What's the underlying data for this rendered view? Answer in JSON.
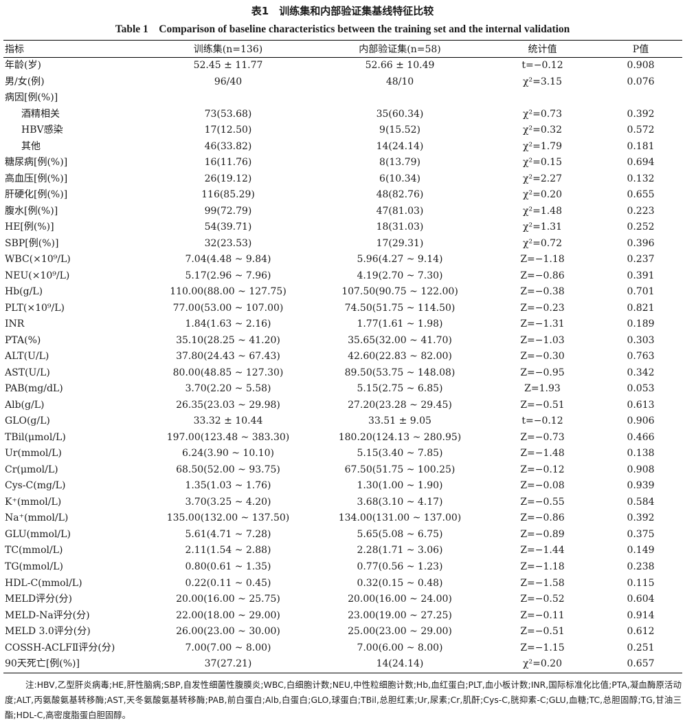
{
  "title_cn": "表1　训练集和内部验证集基线特征比较",
  "title_en": "Table 1　Comparison of baseline characteristics between the training set and the internal validation",
  "headers": [
    "指标",
    "训练集(n=136)",
    "内部验证集(n=58)",
    "统计值",
    "P值"
  ],
  "rows": [
    {
      "name": "年龄(岁)",
      "train": "52.45 ± 11.77",
      "val": "52.66 ± 10.49",
      "stat": "t=−0.12",
      "p": "0.908"
    },
    {
      "name": "男/女(例)",
      "train": "96/40",
      "val": "48/10",
      "stat": "χ²=3.15",
      "p": "0.076"
    },
    {
      "name": "病因[例(%)]",
      "train": "",
      "val": "",
      "stat": "",
      "p": ""
    },
    {
      "name": "酒精相关",
      "indent": true,
      "train": "73(53.68)",
      "val": "35(60.34)",
      "stat": "χ²=0.73",
      "p": "0.392"
    },
    {
      "name": "HBV感染",
      "indent": true,
      "train": "17(12.50)",
      "val": "9(15.52)",
      "stat": "χ²=0.32",
      "p": "0.572"
    },
    {
      "name": "其他",
      "indent": true,
      "train": "46(33.82)",
      "val": "14(24.14)",
      "stat": "χ²=1.79",
      "p": "0.181"
    },
    {
      "name": "糖尿病[例(%)]",
      "train": "16(11.76)",
      "val": "8(13.79)",
      "stat": "χ²=0.15",
      "p": "0.694"
    },
    {
      "name": "高血压[例(%)]",
      "train": "26(19.12)",
      "val": "6(10.34)",
      "stat": "χ²=2.27",
      "p": "0.132"
    },
    {
      "name": "肝硬化[例(%)]",
      "train": "116(85.29)",
      "val": "48(82.76)",
      "stat": "χ²=0.20",
      "p": "0.655"
    },
    {
      "name": "腹水[例(%)]",
      "train": "99(72.79)",
      "val": "47(81.03)",
      "stat": "χ²=1.48",
      "p": "0.223"
    },
    {
      "name": "HE[例(%)]",
      "train": "54(39.71)",
      "val": "18(31.03)",
      "stat": "χ²=1.31",
      "p": "0.252"
    },
    {
      "name": "SBP[例(%)]",
      "train": "32(23.53)",
      "val": "17(29.31)",
      "stat": "χ²=0.72",
      "p": "0.396"
    },
    {
      "name": "WBC(×10⁹/L)",
      "train": "7.04(4.48 ~ 9.84)",
      "val": "5.96(4.27 ~ 9.14)",
      "stat": "Z=−1.18",
      "p": "0.237"
    },
    {
      "name": "NEU(×10⁹/L)",
      "train": "5.17(2.96 ~ 7.96)",
      "val": "4.19(2.70 ~ 7.30)",
      "stat": "Z=−0.86",
      "p": "0.391"
    },
    {
      "name": "Hb(g/L)",
      "train": "110.00(88.00 ~ 127.75)",
      "val": "107.50(90.75 ~ 122.00)",
      "stat": "Z=−0.38",
      "p": "0.701"
    },
    {
      "name": "PLT(×10⁹/L)",
      "train": "77.00(53.00 ~ 107.00)",
      "val": "74.50(51.75 ~ 114.50)",
      "stat": "Z=−0.23",
      "p": "0.821"
    },
    {
      "name": "INR",
      "train": "1.84(1.63 ~ 2.16)",
      "val": "1.77(1.61 ~ 1.98)",
      "stat": "Z=−1.31",
      "p": "0.189"
    },
    {
      "name": "PTA(%)",
      "train": "35.10(28.25 ~ 41.20)",
      "val": "35.65(32.00 ~ 41.70)",
      "stat": "Z=−1.03",
      "p": "0.303"
    },
    {
      "name": "ALT(U/L)",
      "train": "37.80(24.43 ~ 67.43)",
      "val": "42.60(22.83 ~ 82.00)",
      "stat": "Z=−0.30",
      "p": "0.763"
    },
    {
      "name": "AST(U/L)",
      "train": "80.00(48.85 ~ 127.30)",
      "val": "89.50(53.75 ~ 148.08)",
      "stat": "Z=−0.95",
      "p": "0.342"
    },
    {
      "name": "PAB(mg/dL)",
      "train": "3.70(2.20 ~ 5.58)",
      "val": "5.15(2.75 ~ 6.85)",
      "stat": "Z=1.93",
      "p": "0.053"
    },
    {
      "name": "Alb(g/L)",
      "train": "26.35(23.03 ~ 29.98)",
      "val": "27.20(23.28 ~ 29.45)",
      "stat": "Z=−0.51",
      "p": "0.613"
    },
    {
      "name": "GLO(g/L)",
      "train": "33.32 ± 10.44",
      "val": "33.51 ± 9.05",
      "stat": "t=−0.12",
      "p": "0.906"
    },
    {
      "name": "TBil(μmol/L)",
      "train": "197.00(123.48 ~ 383.30)",
      "val": "180.20(124.13 ~ 280.95)",
      "stat": "Z=−0.73",
      "p": "0.466"
    },
    {
      "name": "Ur(mmol/L)",
      "train": "6.24(3.90 ~ 10.10)",
      "val": "5.15(3.40 ~ 7.85)",
      "stat": "Z=−1.48",
      "p": "0.138"
    },
    {
      "name": "Cr(μmol/L)",
      "train": "68.50(52.00 ~ 93.75)",
      "val": "67.50(51.75 ~ 100.25)",
      "stat": "Z=−0.12",
      "p": "0.908"
    },
    {
      "name": "Cys-C(mg/L)",
      "train": "1.35(1.03 ~ 1.76)",
      "val": "1.30(1.00 ~ 1.90)",
      "stat": "Z=−0.08",
      "p": "0.939"
    },
    {
      "name": "K⁺(mmol/L)",
      "train": "3.70(3.25 ~ 4.20)",
      "val": "3.68(3.10 ~ 4.17)",
      "stat": "Z=−0.55",
      "p": "0.584"
    },
    {
      "name": "Na⁺(mmol/L)",
      "train": "135.00(132.00 ~ 137.50)",
      "val": "134.00(131.00 ~ 137.00)",
      "stat": "Z=−0.86",
      "p": "0.392"
    },
    {
      "name": "GLU(mmol/L)",
      "train": "5.61(4.71 ~ 7.28)",
      "val": "5.65(5.08 ~ 6.75)",
      "stat": "Z=−0.89",
      "p": "0.375"
    },
    {
      "name": "TC(mmol/L)",
      "train": "2.11(1.54 ~ 2.88)",
      "val": "2.28(1.71 ~ 3.06)",
      "stat": "Z=−1.44",
      "p": "0.149"
    },
    {
      "name": "TG(mmol/L)",
      "train": "0.80(0.61 ~ 1.35)",
      "val": "0.77(0.56 ~ 1.23)",
      "stat": "Z=−1.18",
      "p": "0.238"
    },
    {
      "name": "HDL-C(mmol/L)",
      "train": "0.22(0.11 ~ 0.45)",
      "val": "0.32(0.15 ~ 0.48)",
      "stat": "Z=−1.58",
      "p": "0.115"
    },
    {
      "name": "MELD评分(分)",
      "train": "20.00(16.00 ~ 25.75)",
      "val": "20.00(16.00 ~ 24.00)",
      "stat": "Z=−0.52",
      "p": "0.604"
    },
    {
      "name": "MELD-Na评分(分)",
      "train": "22.00(18.00 ~ 29.00)",
      "val": "23.00(19.00 ~ 27.25)",
      "stat": "Z=−0.11",
      "p": "0.914"
    },
    {
      "name": "MELD 3.0评分(分)",
      "train": "26.00(23.00 ~ 30.00)",
      "val": "25.00(23.00 ~ 29.00)",
      "stat": "Z=−0.51",
      "p": "0.612"
    },
    {
      "name": "COSSH-ACLFⅡ评分(分)",
      "train": "7.00(7.00 ~ 8.00)",
      "val": "7.00(6.00 ~ 8.00)",
      "stat": "Z=−1.15",
      "p": "0.251"
    },
    {
      "name": "90天死亡[例(%)]",
      "train": "37(27.21)",
      "val": "14(24.14)",
      "stat": "χ²=0.20",
      "p": "0.657"
    }
  ],
  "note": "注:HBV,乙型肝炎病毒;HE,肝性脑病;SBP,自发性细菌性腹膜炎;WBC,白细胞计数;NEU,中性粒细胞计数;Hb,血红蛋白;PLT,血小板计数;INR,国际标准化比值;PTA,凝血酶原活动度;ALT,丙氨酸氨基转移酶;AST,天冬氨酸氨基转移酶;PAB,前白蛋白;Alb,白蛋白;GLO,球蛋白;TBil,总胆红素;Ur,尿素;Cr,肌酐;Cys-C,胱抑素-C;GLU,血糖;TC,总胆固醇;TG,甘油三酯;HDL-C,高密度脂蛋白胆固醇。"
}
